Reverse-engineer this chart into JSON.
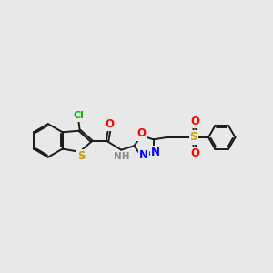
{
  "background_color": "#e8e8e8",
  "bond_color": "#1a1a1a",
  "atom_colors": {
    "S": "#c8a000",
    "O": "#ff0000",
    "N": "#0000ff",
    "Cl": "#00bb00",
    "H": "#888888",
    "C": "#1a1a1a"
  },
  "figsize": [
    3.0,
    3.0
  ],
  "dpi": 100
}
